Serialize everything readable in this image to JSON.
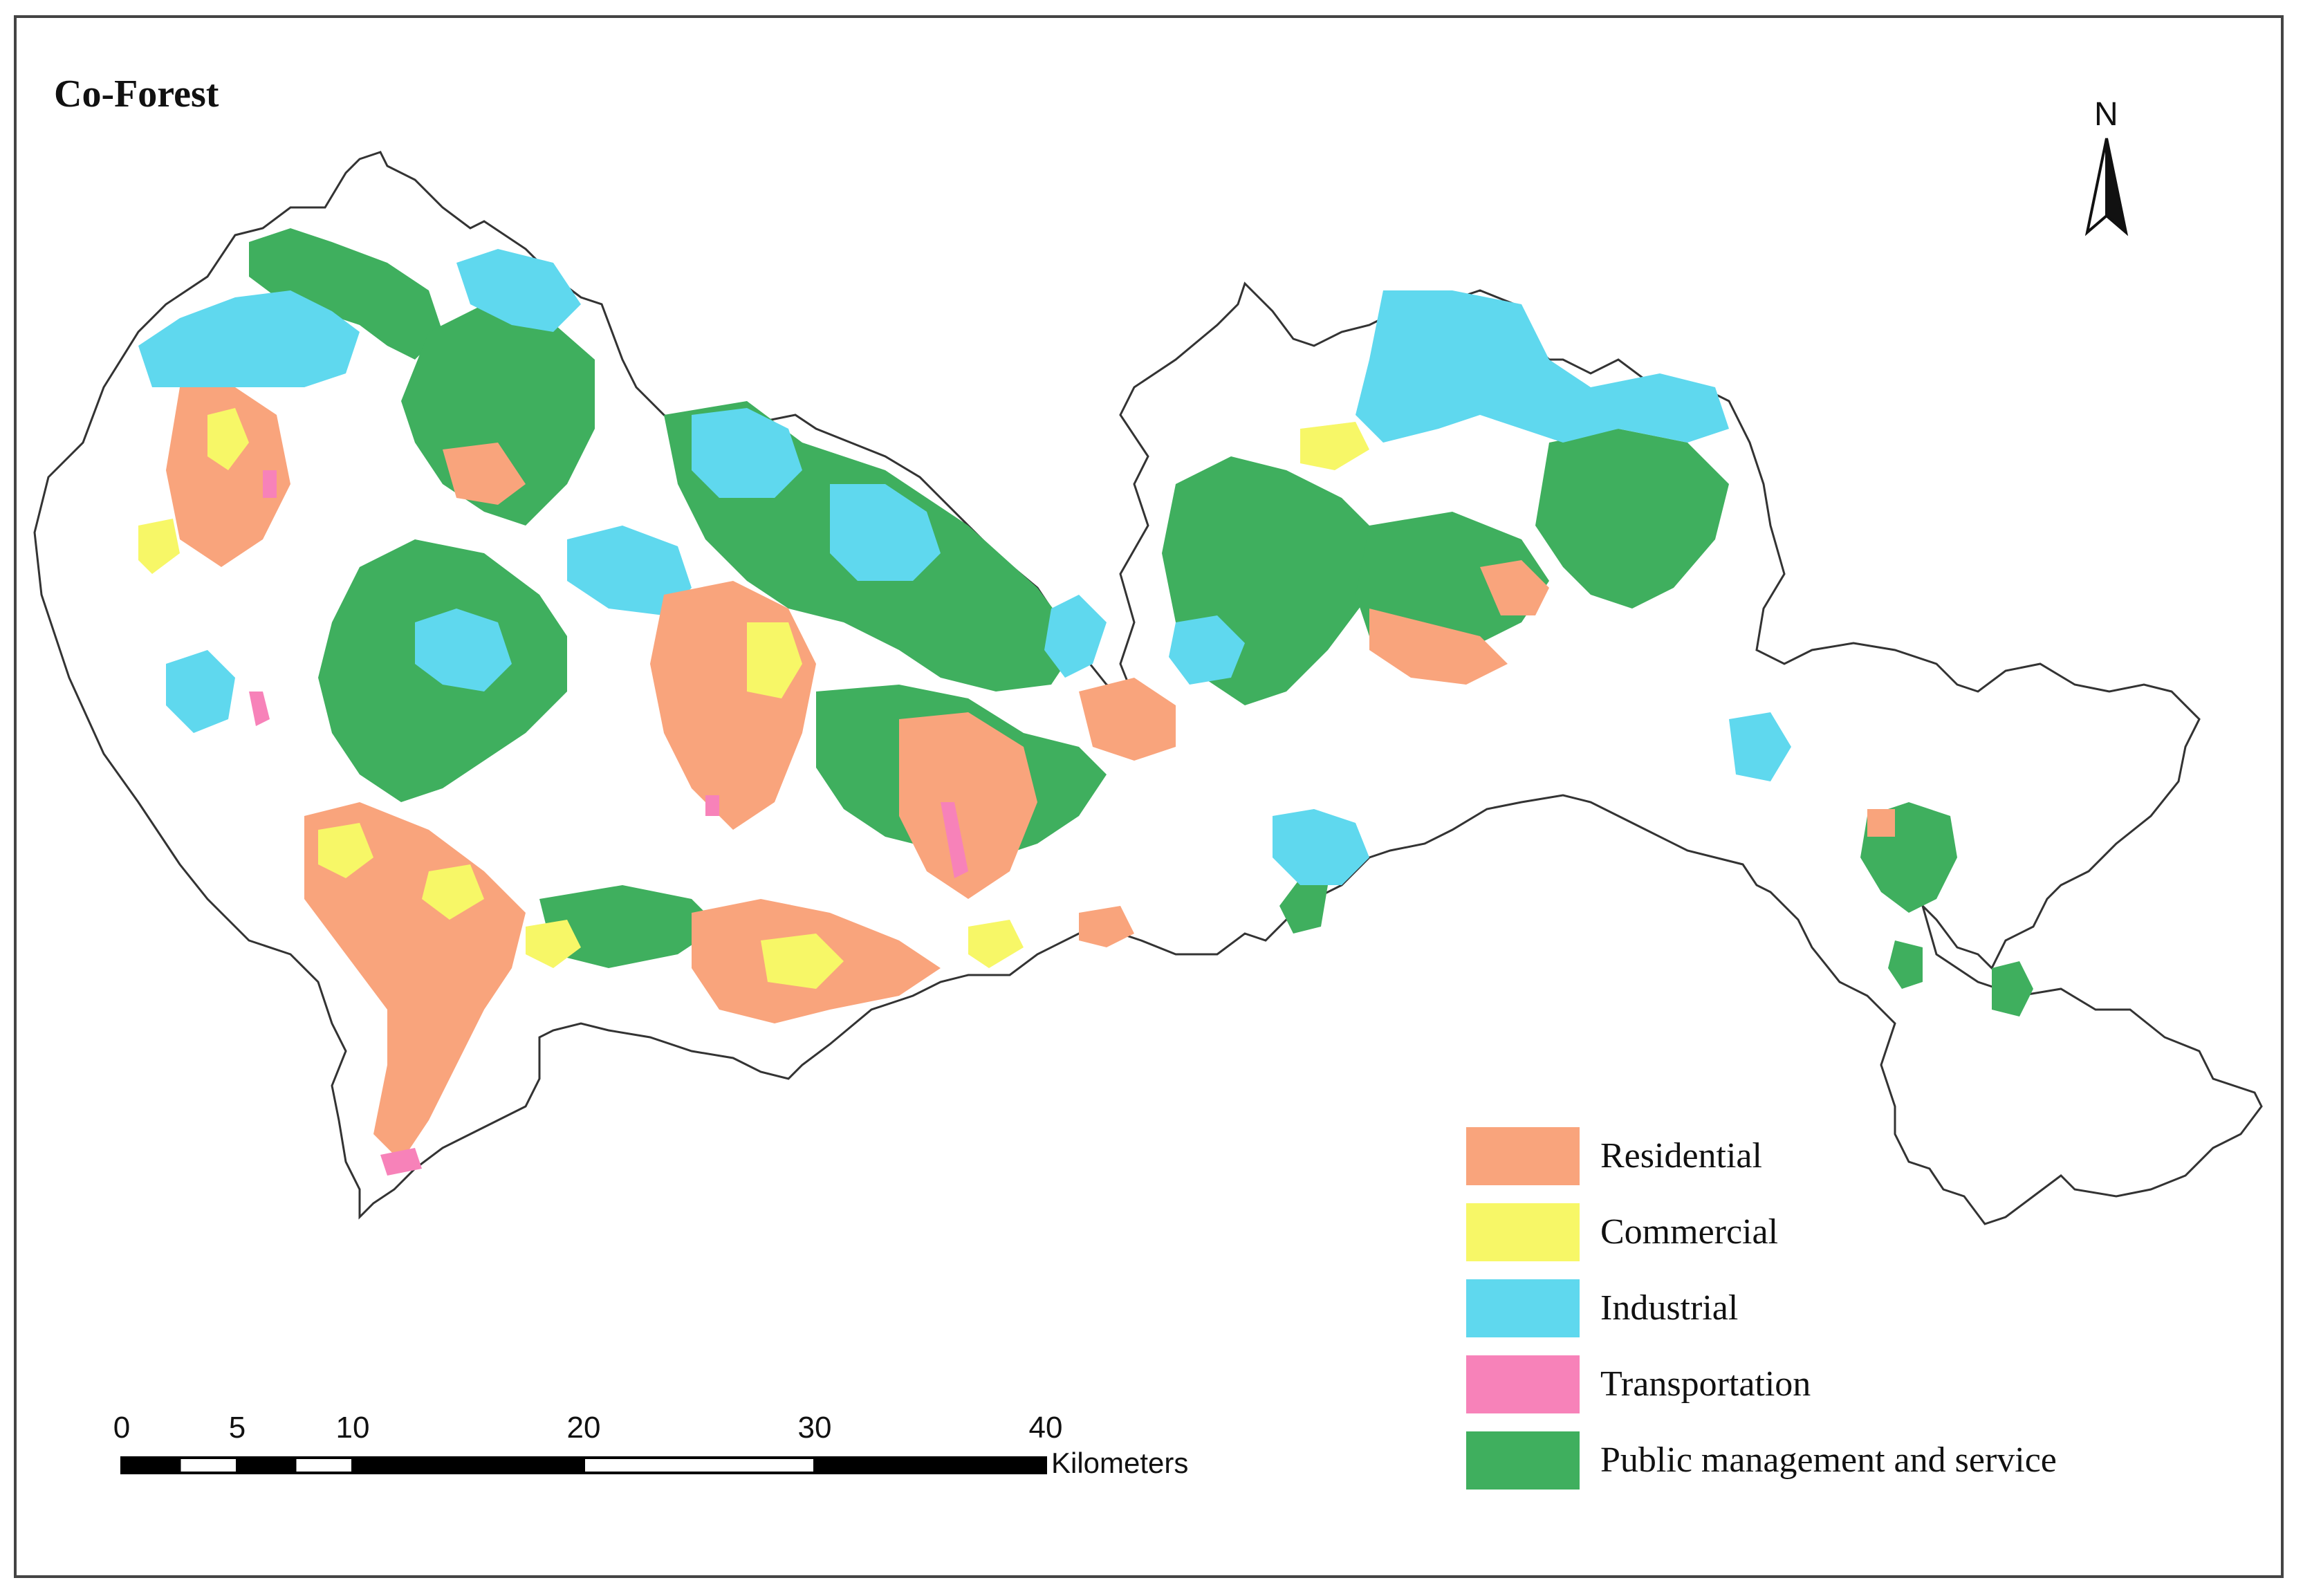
{
  "title": "Co-Forest",
  "north_arrow": {
    "label": "N"
  },
  "legend": {
    "items": [
      {
        "label": "Residential",
        "color": "#F9A47C"
      },
      {
        "label": "Commercial",
        "color": "#F7F767"
      },
      {
        "label": "Industrial",
        "color": "#5FD8EE"
      },
      {
        "label": "Transportation",
        "color": "#F782B9"
      },
      {
        "label": "Public management and service",
        "color": "#3FAF5E"
      }
    ]
  },
  "scale_bar": {
    "unit": "Kilometers",
    "ticks": [
      "0",
      "5",
      "10",
      "20",
      "30",
      "40"
    ],
    "max_km": 40
  },
  "boundary_color": "#333333"
}
